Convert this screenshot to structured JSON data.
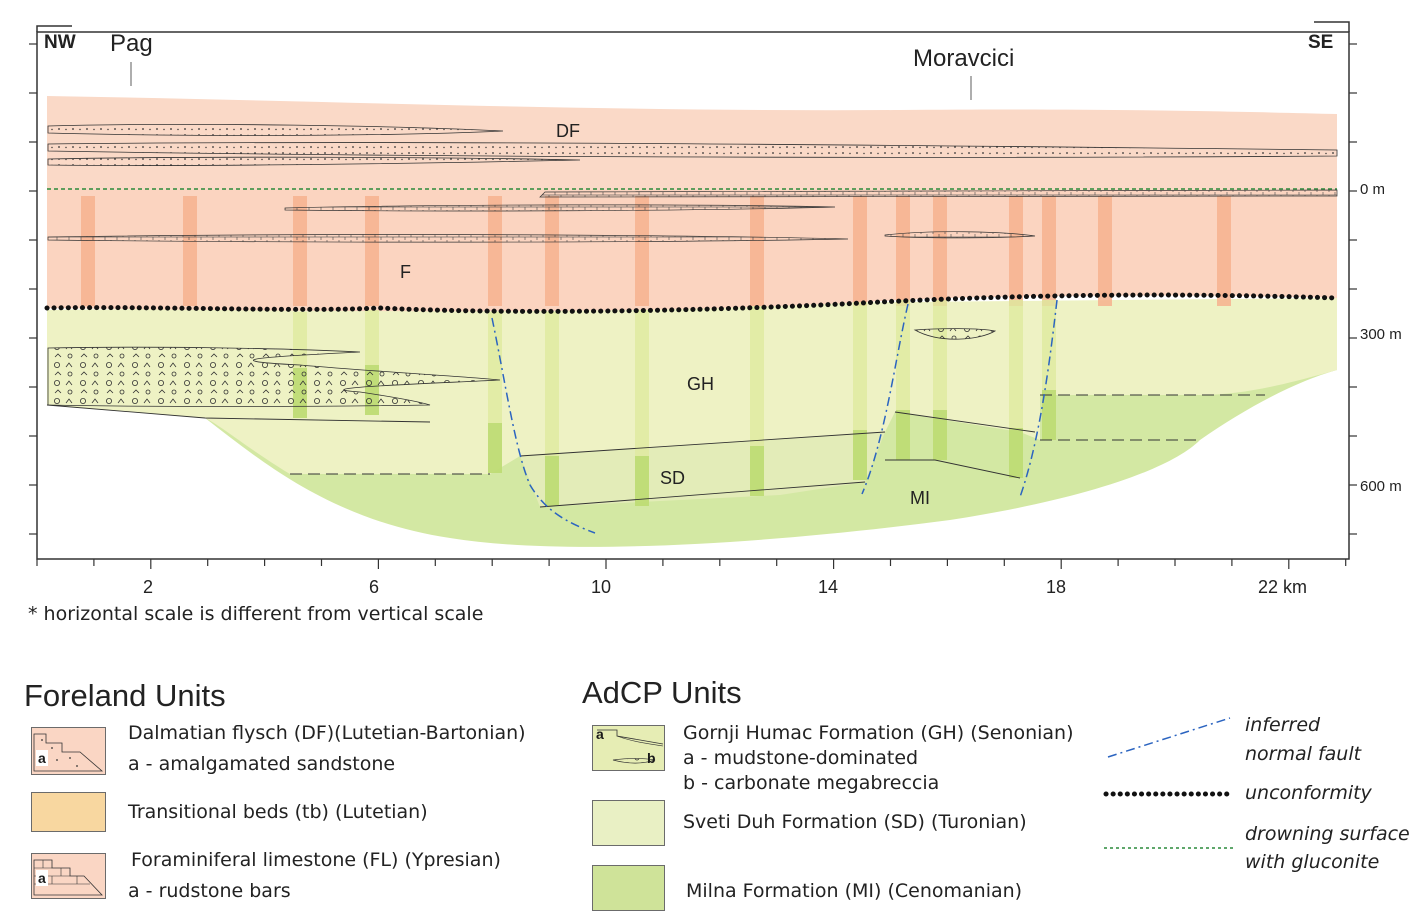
{
  "section": {
    "end_labels": {
      "left": "NW",
      "right": "SE"
    },
    "localities": [
      {
        "name": "Pag",
        "km": 1.65
      },
      {
        "name": "Moravcici",
        "km": 16.4
      }
    ],
    "depth_labels": [
      "0 m",
      "300 m",
      "600 m"
    ],
    "km_labels": [
      "2",
      "6",
      "10",
      "14",
      "18",
      "22 km"
    ],
    "unit_labels": [
      "DF",
      "F",
      "GH",
      "SD",
      "MI"
    ],
    "scale_note": "* horizontal scale is different from vertical scale",
    "colors": {
      "flysch": "#fad9c7",
      "limestone": "#fbd4c0",
      "limestone_bar": "#f6b28e",
      "gornji_humac": "#eef2c4",
      "gornji_humac_bar": "#dfea9f",
      "sveti_duh": "#e8f0c0",
      "milna": "#d3e8a3",
      "milna_bar": "#b6d86a",
      "fault": "#2b64c0",
      "drowning": "#2a8a3a",
      "unconformity": "#111111"
    }
  },
  "legend": {
    "foreland_title": "Foreland Units",
    "adcp_title": "AdCP Units",
    "foreland_items": [
      {
        "lines": [
          "Dalmatian flysch (DF)(Lutetian-Bartonian)",
          "a - amalgamated sandstone"
        ],
        "swatch_label": "a",
        "color": "#fad6c4"
      },
      {
        "lines": [
          "Transitional beds (tb) (Lutetian)"
        ],
        "swatch_label": "",
        "color": "#f8d7a0"
      },
      {
        "lines": [
          "Foraminiferal  limestone (FL) (Ypresian)",
          " a - rudstone bars"
        ],
        "swatch_label": "a",
        "color": "#fad6c4"
      }
    ],
    "adcp_items": [
      {
        "lines": [
          "Gornji Humac Formation (GH) (Senonian)",
          "a - mudstone-dominated",
          "b - carbonate megabreccia"
        ],
        "swatch_labels": [
          "a",
          "b"
        ],
        "color": "#e6edb4"
      },
      {
        "lines": [
          "Sveti Duh Formation (SD) (Turonian)"
        ],
        "color": "#e9f0c4"
      },
      {
        "lines": [
          "Milna Formation (MI) (Cenomanian)"
        ],
        "color": "#cfe399"
      }
    ],
    "line_items": [
      {
        "lines": [
          "inferred",
          "normal fault"
        ],
        "style": "dash-dot",
        "color": "#2b64c0"
      },
      {
        "lines": [
          "unconformity"
        ],
        "style": "dots",
        "color": "#111111"
      },
      {
        "lines": [
          "drowning surface",
          "with gluconite"
        ],
        "style": "dashed",
        "color": "#2a8a3a"
      }
    ]
  }
}
